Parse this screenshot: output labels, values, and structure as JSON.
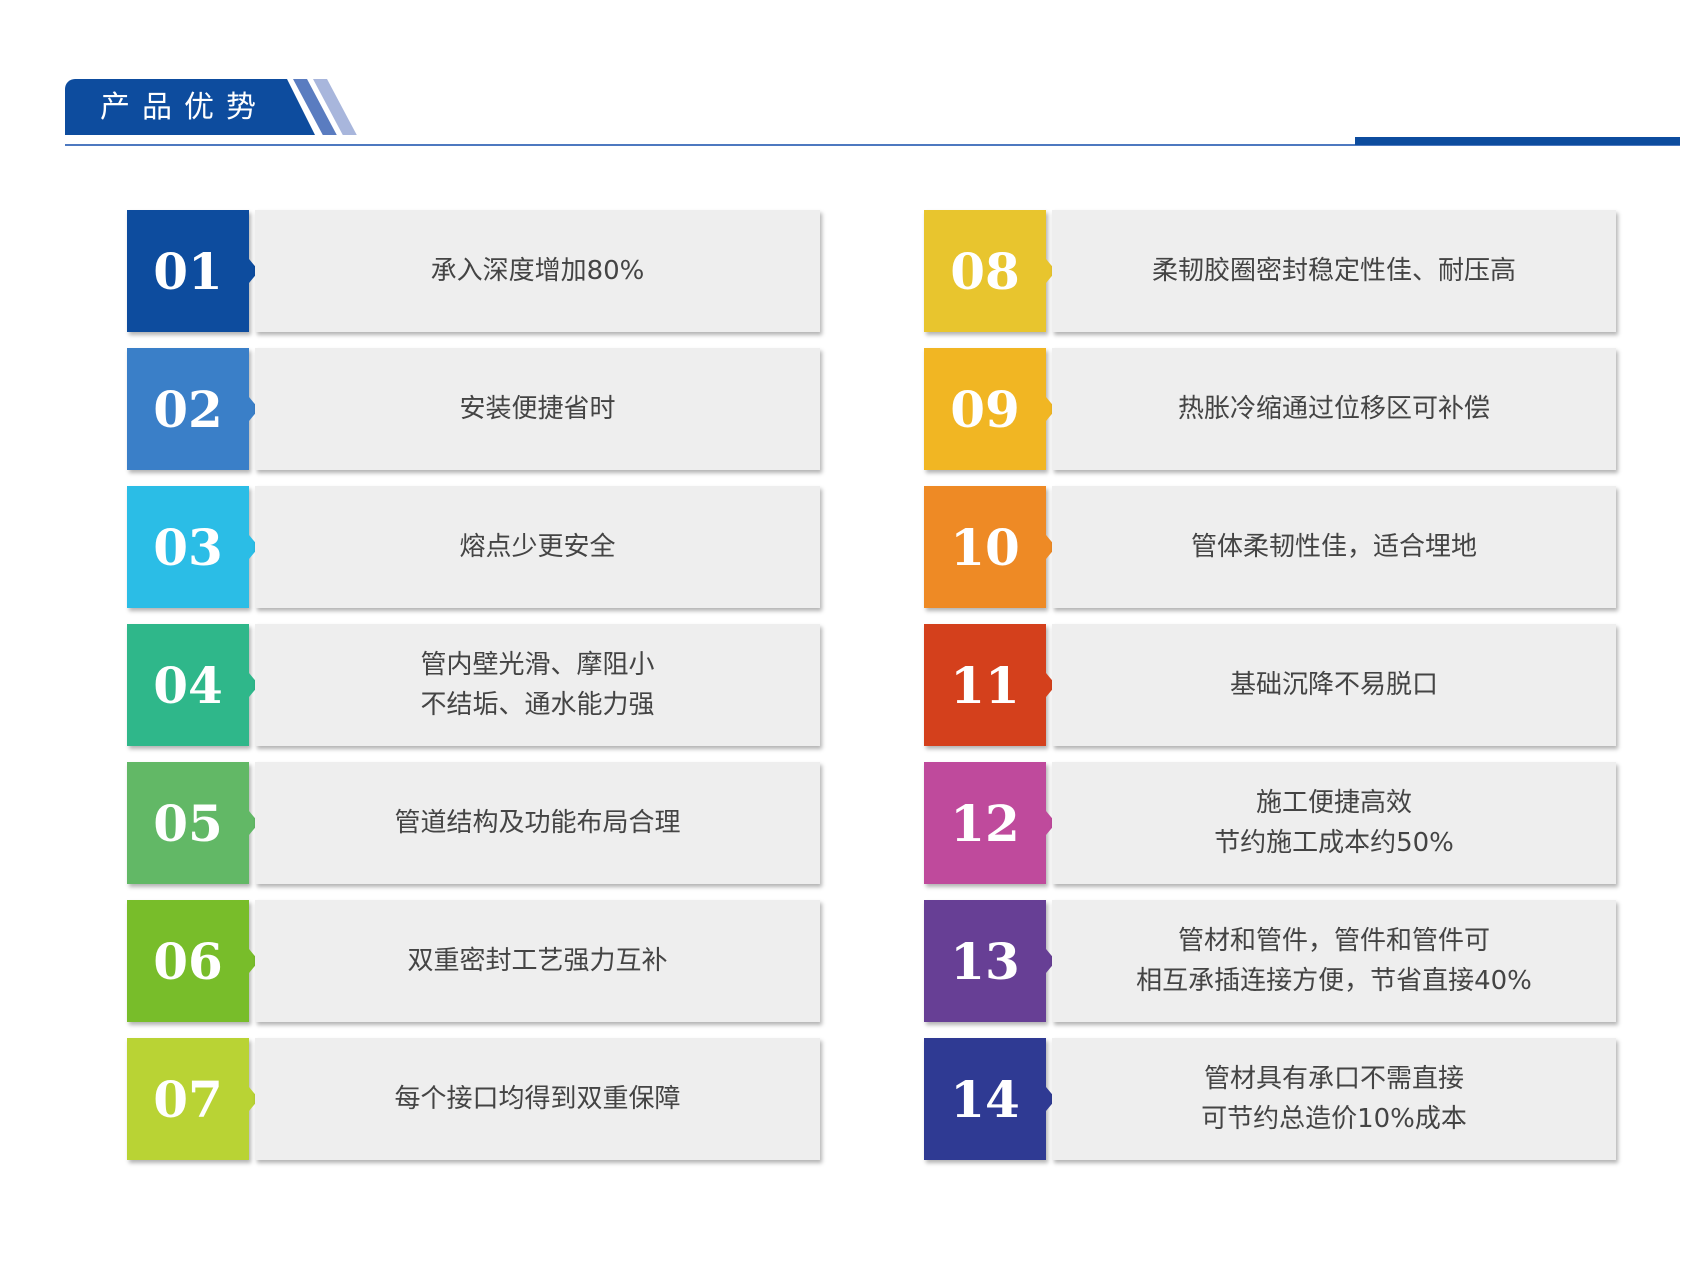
{
  "header": {
    "title": "产品优势",
    "accent": "#0d4c9e"
  },
  "left": [
    {
      "num": "01",
      "text": "承入深度增加80%",
      "color": "#0d4c9e"
    },
    {
      "num": "02",
      "text": "安装便捷省时",
      "color": "#3a7fc8"
    },
    {
      "num": "03",
      "text": "熔点少更安全",
      "color": "#2bbde6"
    },
    {
      "num": "04",
      "text": "管内壁光滑、摩阻小\n不结垢、通水能力强",
      "color": "#2fb78a"
    },
    {
      "num": "05",
      "text": "管道结构及功能布局合理",
      "color": "#62b866"
    },
    {
      "num": "06",
      "text": "双重密封工艺强力互补",
      "color": "#78bd2a"
    },
    {
      "num": "07",
      "text": "每个接口均得到双重保障",
      "color": "#b9d334"
    }
  ],
  "right": [
    {
      "num": "08",
      "text": "柔韧胶圈密封稳定性佳、耐压高",
      "color": "#e8c52e"
    },
    {
      "num": "09",
      "text": "热胀冷缩通过位移区可补偿",
      "color": "#f1b623"
    },
    {
      "num": "10",
      "text": "管体柔韧性佳，适合埋地",
      "color": "#ee8a25"
    },
    {
      "num": "11",
      "text": "基础沉降不易脱口",
      "color": "#d4401c"
    },
    {
      "num": "12",
      "text": "施工便捷高效\n节约施工成本约50%",
      "color": "#bf4a9c"
    },
    {
      "num": "13",
      "text": "管材和管件，管件和管件可\n相互承插连接方便，节省直接40%",
      "color": "#673f95"
    },
    {
      "num": "14",
      "text": "管材具有承口不需直接\n可节约总造价10%成本",
      "color": "#2f3a93"
    }
  ]
}
